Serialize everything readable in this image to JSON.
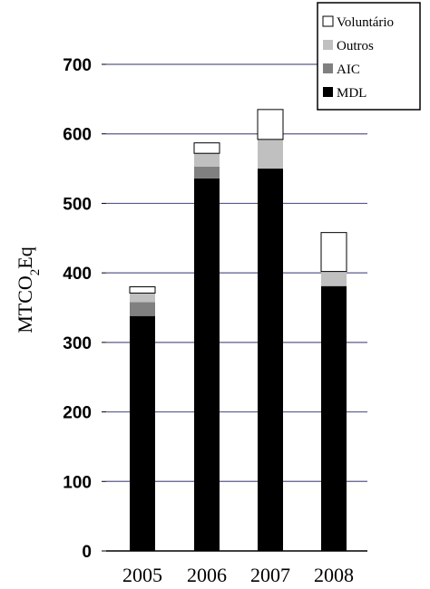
{
  "chart_data": {
    "type": "bar",
    "stacked": true,
    "categories": [
      "2005",
      "2006",
      "2007",
      "2008"
    ],
    "series": [
      {
        "name": "MDL",
        "values": [
          338,
          536,
          550,
          381
        ],
        "color": "#000000"
      },
      {
        "name": "AIC",
        "values": [
          20,
          17,
          0,
          0
        ],
        "color": "#808080"
      },
      {
        "name": "Outros",
        "values": [
          13,
          19,
          42,
          21
        ],
        "color": "#c0c0c0"
      },
      {
        "name": "Voluntário",
        "values": [
          9,
          15,
          43,
          56
        ],
        "color": "#ffffff"
      }
    ],
    "title": "",
    "xlabel": "",
    "ylabel": {
      "main": "MTCO",
      "sub": "2",
      "tail": "Eq"
    },
    "ylim": [
      0,
      700
    ],
    "yticks": [
      0,
      100,
      200,
      300,
      400,
      500,
      600,
      700
    ],
    "grid": true,
    "grid_color": "#5a5a8c",
    "legend": {
      "placement": "top-right",
      "order": [
        "Voluntário",
        "Outros",
        "AIC",
        "MDL"
      ]
    }
  }
}
